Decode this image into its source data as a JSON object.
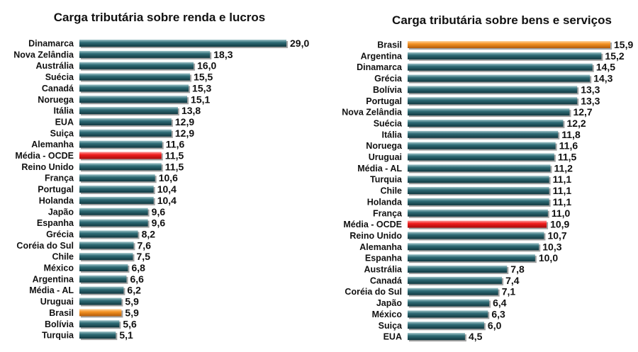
{
  "chart_data": [
    {
      "type": "bar",
      "orientation": "horizontal",
      "title": "Carga tributária sobre renda e lucros",
      "categories": [
        "Dinamarca",
        "Nova Zelândia",
        "Austrália",
        "Suécia",
        "Canadá",
        "Noruega",
        "Itália",
        "EUA",
        "Suiça",
        "Alemanha",
        "Média - OCDE",
        "Reino Unido",
        "França",
        "Portugal",
        "Holanda",
        "Japão",
        "Espanha",
        "Grécia",
        "Coréia do Sul",
        "Chile",
        "México",
        "Argentina",
        "Média - AL",
        "Uruguai",
        "Brasil",
        "Bolívia",
        "Turquia"
      ],
      "values": [
        29.0,
        18.3,
        16.0,
        15.5,
        15.3,
        15.1,
        13.8,
        12.9,
        12.9,
        11.6,
        11.5,
        11.5,
        10.6,
        10.4,
        10.4,
        9.6,
        9.6,
        8.2,
        7.6,
        7.5,
        6.8,
        6.6,
        6.2,
        5.9,
        5.9,
        5.6,
        5.1
      ],
      "value_labels": [
        "29,0",
        "18,3",
        "16,0",
        "15,5",
        "15,3",
        "15,1",
        "13,8",
        "12,9",
        "12,9",
        "11,6",
        "11,5",
        "11,5",
        "10,6",
        "10,4",
        "10,4",
        "9,6",
        "9,6",
        "8,2",
        "7,6",
        "7,5",
        "6,8",
        "6,6",
        "6,2",
        "5,9",
        "5,9",
        "5,6",
        "5,1"
      ],
      "highlights": {
        "Média - OCDE": "#e41a1a",
        "Brasil": "#f08a1c"
      },
      "default_color": "#1f5560",
      "xlim": [
        0,
        29.0
      ],
      "grid": false,
      "legend": "none"
    },
    {
      "type": "bar",
      "orientation": "horizontal",
      "title": "Carga tributária sobre bens e serviços",
      "categories": [
        "Brasil",
        "Argentina",
        "Dinamarca",
        "Grécia",
        "Bolívia",
        "Portugal",
        "Nova Zelândia",
        "Suécia",
        "Itália",
        "Noruega",
        "Uruguai",
        "Média - AL",
        "Turquia",
        "Chile",
        "Holanda",
        "França",
        "Média - OCDE",
        "Reino Unido",
        "Alemanha",
        "Espanha",
        "Austrália",
        "Canadá",
        "Coréia do Sul",
        "Japão",
        "México",
        "Suiça",
        "EUA"
      ],
      "values": [
        15.9,
        15.2,
        14.5,
        14.3,
        13.3,
        13.3,
        12.7,
        12.2,
        11.8,
        11.6,
        11.5,
        11.2,
        11.1,
        11.1,
        11.1,
        11.0,
        10.9,
        10.7,
        10.3,
        10.0,
        7.8,
        7.4,
        7.1,
        6.4,
        6.3,
        6.0,
        4.5
      ],
      "value_labels": [
        "15,9",
        "15,2",
        "14,5",
        "14,3",
        "13,3",
        "13,3",
        "12,7",
        "12,2",
        "11,8",
        "11,6",
        "11,5",
        "11,2",
        "11,1",
        "11,1",
        "11,1",
        "11,0",
        "10,9",
        "10,7",
        "10,3",
        "10,0",
        "7,8",
        "7,4",
        "7,1",
        "6,4",
        "6,3",
        "6,0",
        "4,5"
      ],
      "highlights": {
        "Brasil": "#f08a1c",
        "Média - OCDE": "#e41a1a"
      },
      "default_color": "#1f5560",
      "xlim": [
        0,
        15.9
      ],
      "grid": false,
      "legend": "none"
    }
  ]
}
